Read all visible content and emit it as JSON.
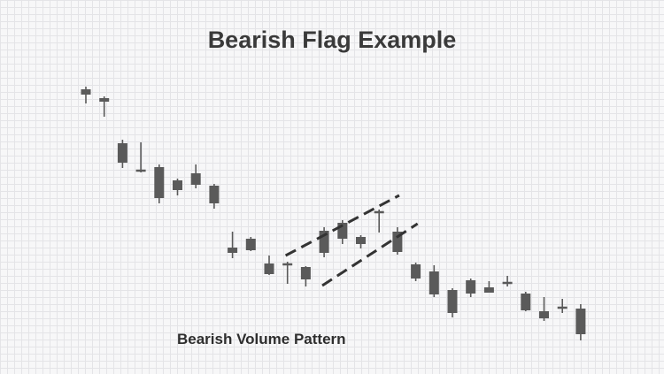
{
  "chart_data": {
    "type": "candlestick",
    "title": "Bearish Flag Example",
    "subtitle": "Bearish Volume Pattern",
    "grid": true,
    "colors": {
      "candle": "#5a5a5a",
      "flag_lines": "#333333",
      "text": "#3a3a3a"
    },
    "candles": [
      {
        "open": 319,
        "close": 313,
        "high": 322,
        "low": 303
      },
      {
        "open": 309,
        "close": 305,
        "high": 311,
        "low": 288
      },
      {
        "open": 258,
        "close": 236,
        "high": 262,
        "low": 230
      },
      {
        "open": 227,
        "close": 227,
        "high": 259,
        "low": 225
      },
      {
        "open": 231,
        "close": 196,
        "high": 234,
        "low": 190
      },
      {
        "open": 216,
        "close": 205,
        "high": 218,
        "low": 199
      },
      {
        "open": 224,
        "close": 211,
        "high": 234,
        "low": 207
      },
      {
        "open": 210,
        "close": 190,
        "high": 212,
        "low": 184
      },
      {
        "open": 140,
        "close": 134,
        "high": 158,
        "low": 128
      },
      {
        "open": 150,
        "close": 137,
        "high": 152,
        "low": 136
      },
      {
        "open": 122,
        "close": 110,
        "high": 131,
        "low": 109
      },
      {
        "open": 121,
        "close": 121,
        "high": 124,
        "low": 99
      },
      {
        "open": 118,
        "close": 104,
        "high": 119,
        "low": 96
      },
      {
        "open": 134,
        "close": 159,
        "high": 163,
        "low": 129
      },
      {
        "open": 168,
        "close": 150,
        "high": 171,
        "low": 144
      },
      {
        "open": 152,
        "close": 144,
        "high": 154,
        "low": 139
      },
      {
        "open": 180,
        "close": 180,
        "high": 183,
        "low": 157
      },
      {
        "open": 158,
        "close": 135,
        "high": 163,
        "low": 132
      },
      {
        "open": 121,
        "close": 105,
        "high": 123,
        "low": 102
      },
      {
        "open": 113,
        "close": 87,
        "high": 120,
        "low": 84
      },
      {
        "open": 92,
        "close": 66,
        "high": 94,
        "low": 61
      },
      {
        "open": 103,
        "close": 88,
        "high": 105,
        "low": 84
      },
      {
        "open": 95,
        "close": 89,
        "high": 102,
        "low": 89
      },
      {
        "open": 100,
        "close": 98,
        "high": 108,
        "low": 96
      },
      {
        "open": 88,
        "close": 69,
        "high": 90,
        "low": 68
      },
      {
        "open": 68,
        "close": 60,
        "high": 84,
        "low": 57
      },
      {
        "open": 72,
        "close": 71,
        "high": 82,
        "low": 66
      },
      {
        "open": 71,
        "close": 42,
        "high": 76,
        "low": 35
      }
    ],
    "flag_lines": [
      {
        "from": {
          "i": 10.9,
          "price": 131
        },
        "to": {
          "i": 17.1,
          "price": 199
        }
      },
      {
        "from": {
          "i": 12.9,
          "price": 97
        },
        "to": {
          "i": 18.1,
          "price": 167
        }
      }
    ]
  }
}
